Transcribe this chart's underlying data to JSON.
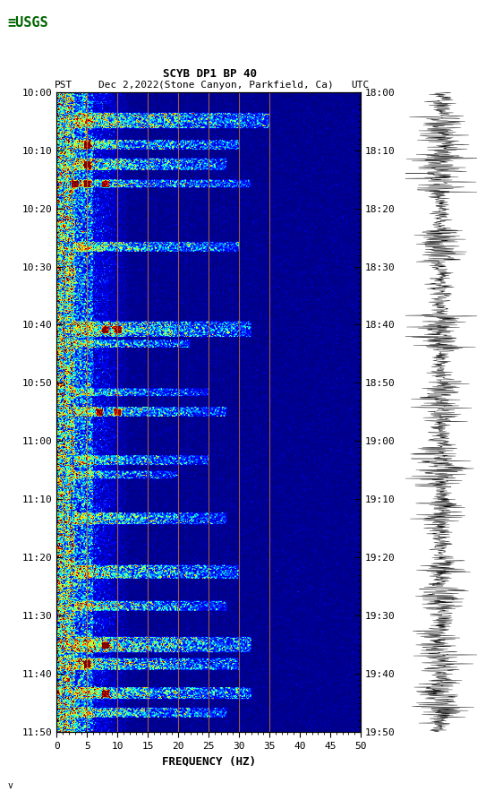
{
  "title_line1": "SCYB DP1 BP 40",
  "title_line2_left": "PST",
  "title_line2_date": "Dec 2,2022",
  "title_line2_loc": "(Stone Canyon, Parkfield, Ca)",
  "title_line2_right": "UTC",
  "left_times": [
    "10:00",
    "10:10",
    "10:20",
    "10:30",
    "10:40",
    "10:50",
    "11:00",
    "11:10",
    "11:20",
    "11:30",
    "11:40",
    "11:50"
  ],
  "right_times": [
    "18:00",
    "18:10",
    "18:20",
    "18:30",
    "18:40",
    "18:50",
    "19:00",
    "19:10",
    "19:20",
    "19:30",
    "19:40",
    "19:50"
  ],
  "freq_min": 0,
  "freq_max": 50,
  "freq_ticks": [
    0,
    5,
    10,
    15,
    20,
    25,
    30,
    35,
    40,
    45,
    50
  ],
  "xlabel": "FREQUENCY (HZ)",
  "vertical_lines_freq": [
    5,
    10,
    15,
    20,
    25,
    30,
    35
  ],
  "vline_color": "#b87333",
  "bg_color": "white",
  "figsize": [
    5.52,
    8.93
  ],
  "dpi": 100
}
